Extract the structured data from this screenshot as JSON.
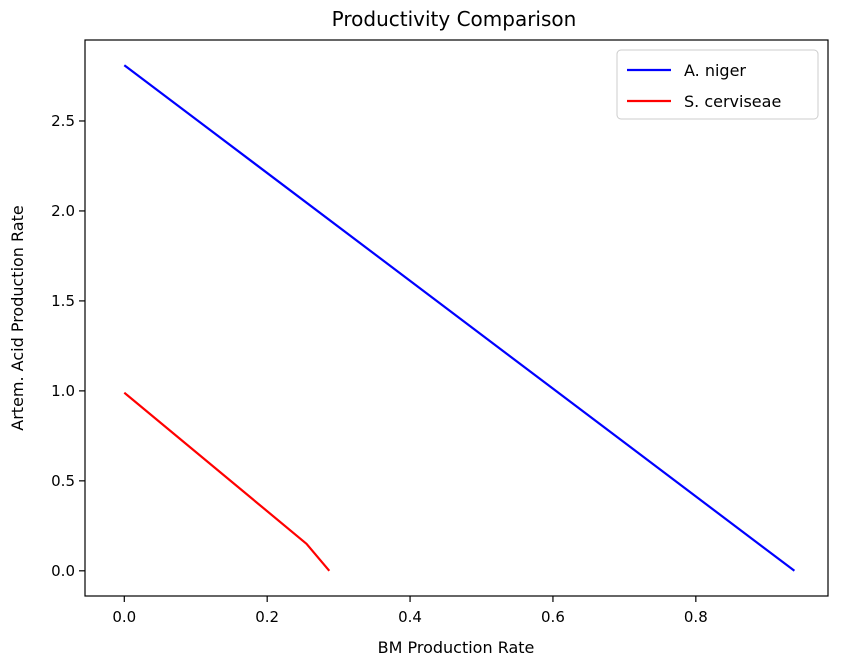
{
  "chart_data": {
    "type": "line",
    "title": "Productivity Comparison",
    "xlabel": "BM Production Rate",
    "ylabel": "Artem. Acid Production Rate",
    "xlim": [
      -0.055,
      0.985
    ],
    "ylim": [
      -0.14,
      2.95
    ],
    "x_ticks": [
      0.0,
      0.2,
      0.4,
      0.6,
      0.8
    ],
    "x_tick_labels": [
      "0.0",
      "0.2",
      "0.4",
      "0.6",
      "0.8"
    ],
    "y_ticks": [
      0.0,
      0.5,
      1.0,
      1.5,
      2.0,
      2.5
    ],
    "y_tick_labels": [
      "0.0",
      "0.5",
      "1.0",
      "1.5",
      "2.0",
      "2.5"
    ],
    "grid": false,
    "legend_position": "upper right",
    "series": [
      {
        "name": "A. niger",
        "color": "#0000ff",
        "x": [
          0.0,
          0.938
        ],
        "y": [
          2.81,
          0.0
        ]
      },
      {
        "name": "S. cerviseae",
        "color": "#ff0000",
        "x": [
          0.0,
          0.255,
          0.287
        ],
        "y": [
          0.99,
          0.15,
          0.0
        ]
      }
    ]
  }
}
